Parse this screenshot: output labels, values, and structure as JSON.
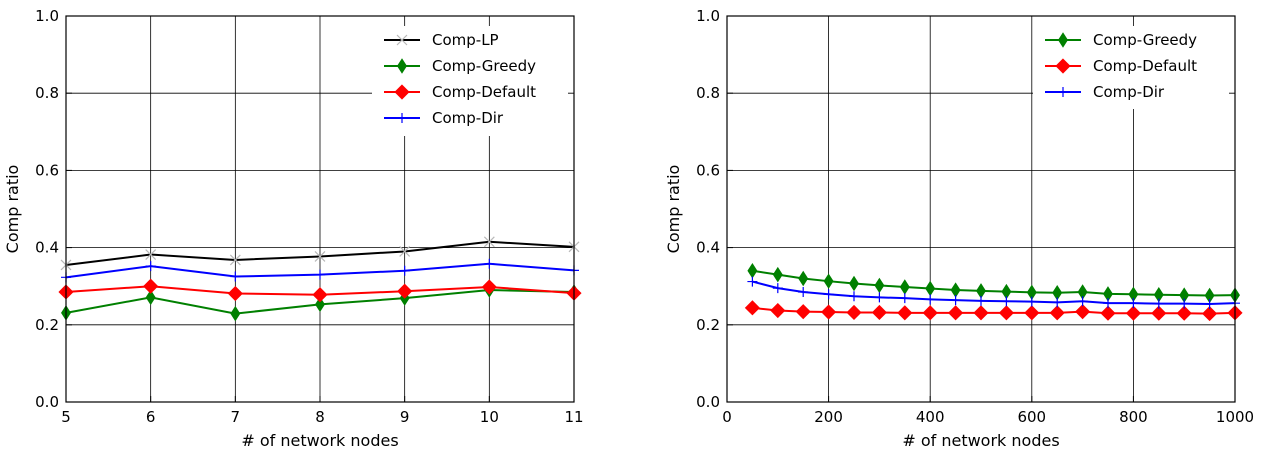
{
  "chart_data": [
    {
      "type": "line",
      "xlabel": "# of network nodes",
      "ylabel": "Comp ratio",
      "xlim": [
        5,
        11
      ],
      "ylim": [
        0.0,
        1.0
      ],
      "xticks": [
        "5",
        "6",
        "7",
        "8",
        "9",
        "10",
        "11"
      ],
      "yticks": [
        "0.0",
        "0.2",
        "0.4",
        "0.6",
        "0.8",
        "1.0"
      ],
      "grid": true,
      "legend_position": "top-right",
      "x": [
        5,
        6,
        7,
        8,
        9,
        10,
        11
      ],
      "series": [
        {
          "name": "Comp-LP",
          "color": "#000000",
          "marker": "x",
          "values": [
            0.355,
            0.382,
            0.368,
            0.377,
            0.39,
            0.415,
            0.402
          ]
        },
        {
          "name": "Comp-Greedy",
          "color": "#008000",
          "marker": "thin-diamond",
          "values": [
            0.231,
            0.271,
            0.229,
            0.253,
            0.269,
            0.29,
            0.285
          ]
        },
        {
          "name": "Comp-Default",
          "color": "#ff0000",
          "marker": "diamond",
          "values": [
            0.285,
            0.3,
            0.281,
            0.278,
            0.287,
            0.298,
            0.282
          ]
        },
        {
          "name": "Comp-Dir",
          "color": "#0000ff",
          "marker": "plus",
          "values": [
            0.323,
            0.352,
            0.325,
            0.33,
            0.34,
            0.358,
            0.341
          ]
        }
      ]
    },
    {
      "type": "line",
      "xlabel": "# of network nodes",
      "ylabel": "Comp ratio",
      "xlim": [
        0,
        1000
      ],
      "ylim": [
        0.0,
        1.0
      ],
      "xticks": [
        "0",
        "200",
        "400",
        "600",
        "800",
        "1000"
      ],
      "yticks": [
        "0.0",
        "0.2",
        "0.4",
        "0.6",
        "0.8",
        "1.0"
      ],
      "grid": true,
      "legend_position": "top-right",
      "x": [
        50,
        100,
        150,
        200,
        250,
        300,
        350,
        400,
        450,
        500,
        550,
        600,
        650,
        700,
        750,
        800,
        850,
        900,
        950,
        1000
      ],
      "series": [
        {
          "name": "Comp-Greedy",
          "color": "#008000",
          "marker": "thin-diamond",
          "values": [
            0.34,
            0.33,
            0.32,
            0.313,
            0.307,
            0.302,
            0.298,
            0.294,
            0.29,
            0.288,
            0.286,
            0.284,
            0.283,
            0.285,
            0.28,
            0.279,
            0.278,
            0.277,
            0.276,
            0.277
          ]
        },
        {
          "name": "Comp-Default",
          "color": "#ff0000",
          "marker": "diamond",
          "values": [
            0.244,
            0.237,
            0.234,
            0.233,
            0.232,
            0.232,
            0.231,
            0.231,
            0.231,
            0.231,
            0.231,
            0.231,
            0.231,
            0.234,
            0.23,
            0.23,
            0.23,
            0.23,
            0.229,
            0.231
          ]
        },
        {
          "name": "Comp-Dir",
          "color": "#0000ff",
          "marker": "plus",
          "values": [
            0.312,
            0.295,
            0.285,
            0.279,
            0.274,
            0.271,
            0.269,
            0.266,
            0.264,
            0.262,
            0.261,
            0.26,
            0.258,
            0.261,
            0.256,
            0.256,
            0.255,
            0.255,
            0.254,
            0.256
          ]
        }
      ]
    }
  ]
}
